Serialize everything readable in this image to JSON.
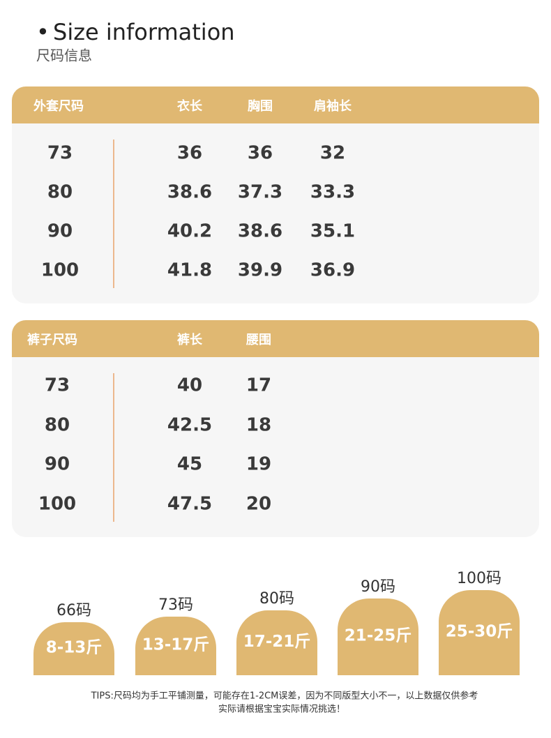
{
  "header": {
    "bullet": "•",
    "title": "Size information",
    "subtitle": "尺码信息"
  },
  "jacket_table": {
    "header": [
      "外套尺码",
      "衣长",
      "胸围",
      "肩袖长"
    ],
    "rows": [
      [
        "73",
        "36",
        "36",
        "32"
      ],
      [
        "80",
        "38.6",
        "37.3",
        "33.3"
      ],
      [
        "90",
        "40.2",
        "38.6",
        "35.1"
      ],
      [
        "100",
        "41.8",
        "39.9",
        "36.9"
      ]
    ]
  },
  "pants_table": {
    "header": [
      "裤子尺码",
      "裤长",
      "腰围"
    ],
    "rows": [
      [
        "73",
        "40",
        "17"
      ],
      [
        "80",
        "42.5",
        "18"
      ],
      [
        "90",
        "45",
        "19"
      ],
      [
        "100",
        "47.5",
        "20"
      ]
    ]
  },
  "weights": [
    {
      "size": "66码",
      "range": "8-13斤"
    },
    {
      "size": "73码",
      "range": "13-17斤"
    },
    {
      "size": "80码",
      "range": "17-21斤"
    },
    {
      "size": "90码",
      "range": "21-25斤"
    },
    {
      "size": "100码",
      "range": "25-30斤"
    }
  ],
  "tips": [
    "TIPS:尺码均为手工平铺测量，可能存在1-2CM误差，因为不同版型大小不一，以上数据仅供参考",
    "实际请根据宝宝实际情况挑选！"
  ]
}
